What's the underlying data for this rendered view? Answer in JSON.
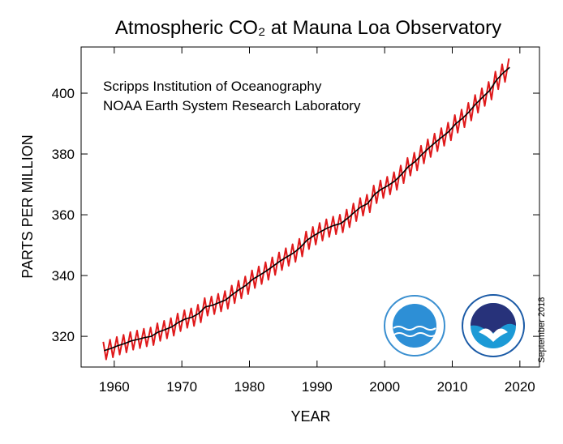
{
  "chart_data": {
    "type": "line",
    "title": "Atmospheric CO₂ at Mauna Loa Observatory",
    "annotations": [
      "Scripps Institution of Oceanography",
      "NOAA Earth System Research Laboratory",
      "September 2018"
    ],
    "x_label": "YEAR",
    "y_label": "PARTS PER MILLION",
    "xlim": [
      1955.1,
      2022.9
    ],
    "ylim": [
      309.9,
      415.2
    ],
    "xticks": [
      1960,
      1970,
      1980,
      1990,
      2000,
      2010,
      2020
    ],
    "yticks": [
      320,
      340,
      360,
      380,
      400
    ],
    "series": [
      {
        "color": "#e0191b",
        "x": [
          1958.38,
          1958.8,
          1959.38,
          1959.8,
          1960.38,
          1960.8,
          1961.38,
          1961.8,
          1962.38,
          1962.8,
          1963.38,
          1963.8,
          1964.38,
          1964.8,
          1965.38,
          1965.8,
          1966.38,
          1966.8,
          1967.38,
          1967.8,
          1968.38,
          1968.8,
          1969.38,
          1969.8,
          1970.38,
          1970.8,
          1971.38,
          1971.8,
          1972.38,
          1972.8,
          1973.38,
          1973.8,
          1974.38,
          1974.8,
          1975.38,
          1975.8,
          1976.38,
          1976.8,
          1977.38,
          1977.8,
          1978.38,
          1978.8,
          1979.38,
          1979.8,
          1980.38,
          1980.8,
          1981.38,
          1981.8,
          1982.38,
          1982.8,
          1983.38,
          1983.8,
          1984.38,
          1984.8,
          1985.38,
          1985.8,
          1986.38,
          1986.8,
          1987.38,
          1987.8,
          1988.38,
          1988.8,
          1989.38,
          1989.8,
          1990.38,
          1990.8,
          1991.38,
          1991.8,
          1992.38,
          1992.8,
          1993.38,
          1993.8,
          1994.38,
          1994.8,
          1995.38,
          1995.8,
          1996.38,
          1996.8,
          1997.38,
          1997.8,
          1998.38,
          1998.8,
          1999.38,
          1999.8,
          2000.38,
          2000.8,
          2001.38,
          2001.8,
          2002.38,
          2002.8,
          2003.38,
          2003.8,
          2004.38,
          2004.8,
          2005.38,
          2005.8,
          2006.38,
          2006.8,
          2007.38,
          2007.8,
          2008.38,
          2008.8,
          2009.38,
          2009.8,
          2010.38,
          2010.8,
          2011.38,
          2011.8,
          2012.38,
          2012.8,
          2013.38,
          2013.8,
          2014.38,
          2014.8,
          2015.38,
          2015.8,
          2016.38,
          2016.8,
          2017.38,
          2017.8,
          2018.38
        ],
        "values": [
          318.2,
          312.4,
          318.9,
          313.1,
          319.8,
          314.0,
          320.5,
          314.7,
          321.4,
          315.6,
          321.9,
          316.1,
          322.5,
          316.7,
          322.9,
          317.1,
          324.3,
          318.5,
          325.1,
          319.3,
          326.0,
          320.2,
          327.5,
          321.7,
          328.6,
          322.8,
          329.2,
          323.4,
          330.4,
          324.6,
          332.6,
          326.8,
          333.1,
          327.3,
          334.0,
          328.2,
          334.9,
          329.1,
          336.7,
          330.9,
          338.3,
          332.5,
          339.7,
          333.9,
          341.7,
          335.9,
          343.0,
          337.2,
          344.4,
          338.6,
          346.0,
          340.2,
          347.6,
          341.8,
          349.0,
          343.2,
          350.3,
          344.5,
          352.1,
          346.3,
          354.5,
          348.7,
          356.0,
          350.2,
          357.3,
          351.5,
          358.5,
          352.7,
          359.4,
          353.6,
          360.0,
          354.2,
          361.7,
          355.9,
          363.7,
          357.9,
          365.5,
          359.7,
          366.6,
          360.8,
          369.6,
          363.8,
          371.3,
          365.5,
          372.5,
          366.7,
          374.0,
          368.2,
          376.2,
          370.4,
          378.7,
          372.9,
          380.4,
          374.6,
          382.7,
          376.9,
          384.8,
          379.0,
          386.7,
          380.9,
          388.5,
          382.7,
          390.3,
          384.5,
          392.8,
          387.0,
          394.6,
          388.8,
          396.8,
          391.0,
          399.4,
          393.6,
          401.6,
          395.8,
          403.7,
          397.9,
          407.1,
          401.3,
          409.5,
          403.7,
          411.4
        ]
      },
      {
        "color": "#000000",
        "x": [
          1958.5,
          1959.5,
          1960.5,
          1961.5,
          1962.5,
          1963.5,
          1964.5,
          1965.5,
          1966.5,
          1967.5,
          1968.5,
          1969.5,
          1970.5,
          1971.5,
          1972.5,
          1973.5,
          1974.5,
          1975.5,
          1976.5,
          1977.5,
          1978.5,
          1979.5,
          1980.5,
          1981.5,
          1982.5,
          1983.5,
          1984.5,
          1985.5,
          1986.5,
          1987.5,
          1988.5,
          1989.5,
          1990.5,
          1991.5,
          1992.5,
          1993.5,
          1994.5,
          1995.5,
          1996.5,
          1997.5,
          1998.5,
          1999.5,
          2000.5,
          2001.5,
          2002.5,
          2003.5,
          2004.5,
          2005.5,
          2006.5,
          2007.5,
          2008.5,
          2009.5,
          2010.5,
          2011.5,
          2012.5,
          2013.5,
          2014.5,
          2015.5,
          2016.5,
          2017.5,
          2018.5
        ],
        "values": [
          315.3,
          316.0,
          316.9,
          317.6,
          318.5,
          319.0,
          319.6,
          320.0,
          321.4,
          322.2,
          323.1,
          324.6,
          325.7,
          326.3,
          327.5,
          329.7,
          330.2,
          331.1,
          332.0,
          333.8,
          335.4,
          336.8,
          338.8,
          340.1,
          341.5,
          343.1,
          344.7,
          346.1,
          347.4,
          349.2,
          351.6,
          353.1,
          354.4,
          355.6,
          356.5,
          357.1,
          358.8,
          360.8,
          362.6,
          363.7,
          366.7,
          368.4,
          369.6,
          371.1,
          373.3,
          375.8,
          377.5,
          379.8,
          381.9,
          383.8,
          385.6,
          387.4,
          389.9,
          391.7,
          393.9,
          396.5,
          398.7,
          400.8,
          404.2,
          406.6,
          408.5
        ]
      }
    ]
  }
}
